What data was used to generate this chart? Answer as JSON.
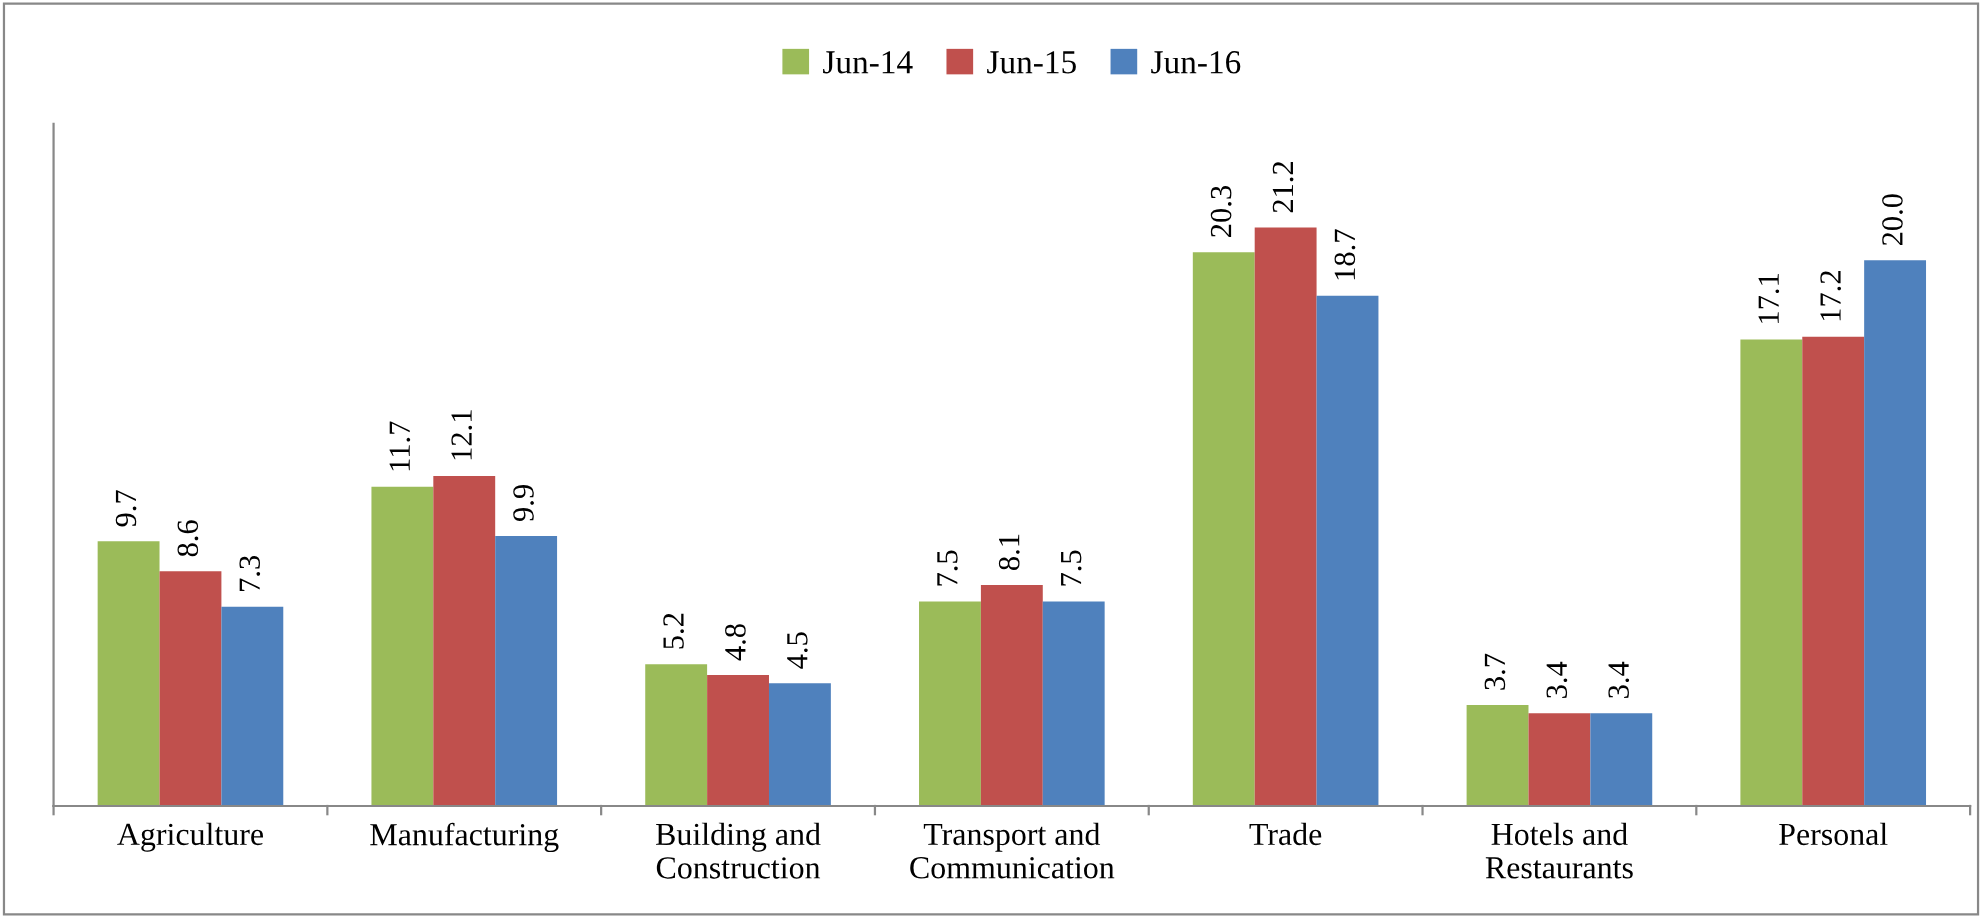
{
  "chart_data": {
    "type": "bar",
    "categories": [
      "Agriculture",
      "Manufacturing",
      "Building and\nConstruction",
      "Transport and\nCommunication",
      "Trade",
      "Hotels and\nRestaurants",
      "Personal"
    ],
    "series": [
      {
        "name": "Jun-14",
        "color": "#9bbb59",
        "values": [
          9.7,
          11.7,
          5.2,
          7.5,
          20.3,
          3.7,
          17.1
        ],
        "value_labels": [
          "9.7",
          "11.7",
          "5.2",
          "7.5",
          "20.3",
          "3.7",
          "17.1"
        ]
      },
      {
        "name": "Jun-15",
        "color": "#c0504d",
        "values": [
          8.6,
          12.1,
          4.8,
          8.1,
          21.2,
          3.4,
          17.2
        ],
        "value_labels": [
          "8.6",
          "12.1",
          "4.8",
          "8.1",
          "21.2",
          "3.4",
          "17.2"
        ]
      },
      {
        "name": "Jun-16",
        "color": "#4f81bd",
        "values": [
          7.3,
          9.9,
          4.5,
          7.5,
          18.7,
          3.4,
          20.0
        ],
        "value_labels": [
          "7.3",
          "9.9",
          "4.5",
          "7.5",
          "18.7",
          "3.4",
          "20.0"
        ]
      }
    ],
    "ylim": [
      0,
      25
    ],
    "legend": "top",
    "grid": false,
    "tick_labels": "x"
  }
}
